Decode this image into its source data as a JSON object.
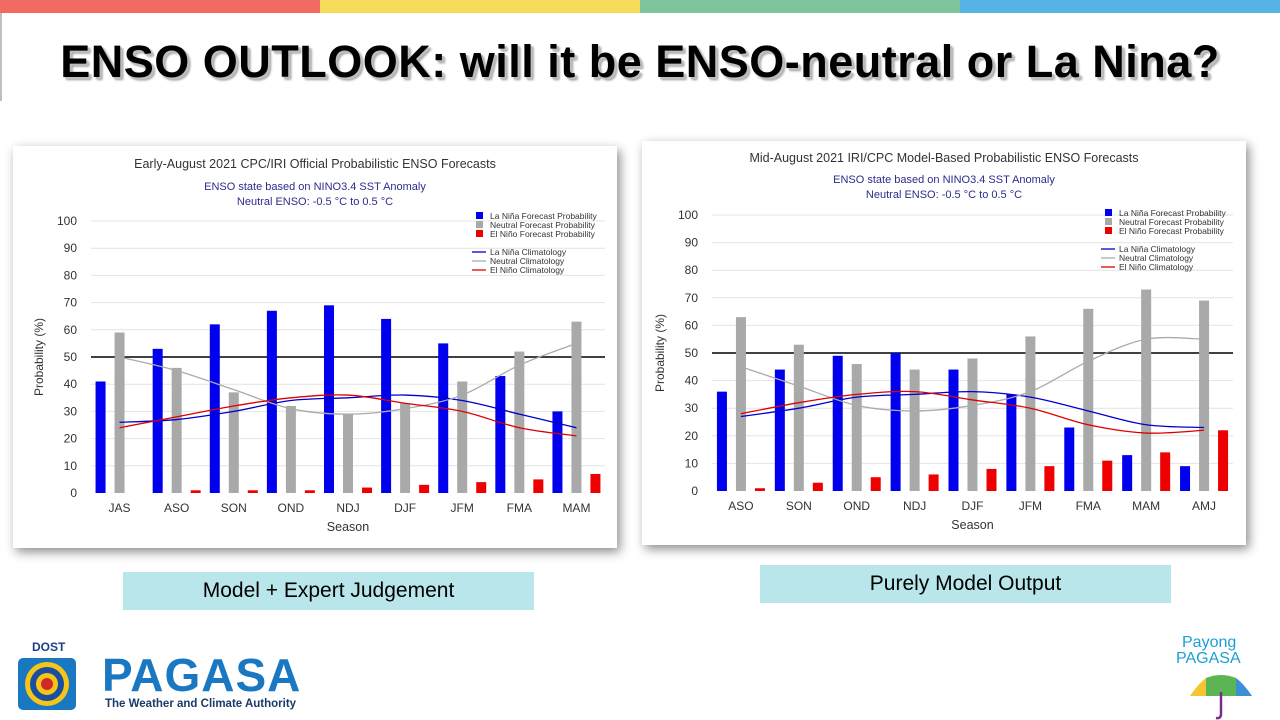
{
  "page": {
    "title": "ENSO OUTLOOK: will it be ENSO-neutral or  La Nina?",
    "topbar_colors": [
      "#f26b63",
      "#f5dc5a",
      "#7cc49a",
      "#55b4e4"
    ],
    "captions": {
      "left": "Model + Expert Judgement",
      "right": "Purely Model Output"
    },
    "logos": {
      "dost": "DOST",
      "pagasa": "PAGASA",
      "pagasa_tagline": "The Weather and Climate Authority",
      "payong_line1": "Payong",
      "payong_line2": "PAGASA"
    }
  },
  "chart_data": [
    {
      "type": "bar",
      "title": "Early-August 2021 CPC/IRI Official Probabilistic ENSO Forecasts",
      "subtitle": [
        "ENSO state based on NINO3.4 SST Anomaly",
        "Neutral ENSO: -0.5 °C to 0.5 °C"
      ],
      "xlabel": "Season",
      "ylabel": "Probability (%)",
      "ylim": [
        0,
        100
      ],
      "yticks": [
        0,
        10,
        20,
        30,
        40,
        50,
        60,
        70,
        80,
        90,
        100
      ],
      "reference_line": 50,
      "grid": true,
      "legend_position": "top-right",
      "categories": [
        "JAS",
        "ASO",
        "SON",
        "OND",
        "NDJ",
        "DJF",
        "JFM",
        "FMA",
        "MAM"
      ],
      "series": [
        {
          "name": "La Niña Forecast Probability",
          "kind": "bar",
          "color": "#0000ee",
          "values": [
            41,
            53,
            62,
            67,
            69,
            64,
            55,
            43,
            30
          ]
        },
        {
          "name": "Neutral Forecast Probability",
          "kind": "bar",
          "color": "#a9a9a9",
          "values": [
            59,
            46,
            37,
            32,
            29,
            33,
            41,
            52,
            63
          ]
        },
        {
          "name": "El Niño Forecast Probability",
          "kind": "bar",
          "color": "#ee0000",
          "values": [
            0,
            1,
            1,
            1,
            2,
            3,
            4,
            5,
            7
          ]
        },
        {
          "name": "La Niña Climatology",
          "kind": "line",
          "color": "#0000cc",
          "values": [
            26,
            27,
            30,
            34,
            35,
            36,
            34,
            29,
            24
          ]
        },
        {
          "name": "Neutral Climatology",
          "kind": "line",
          "color": "#aaaaaa",
          "values": [
            50,
            45,
            38,
            31,
            29,
            31,
            36,
            47,
            55
          ]
        },
        {
          "name": "El Niño Climatology",
          "kind": "line",
          "color": "#dd0000",
          "values": [
            24,
            28,
            32,
            35,
            36,
            33,
            30,
            24,
            21
          ]
        }
      ]
    },
    {
      "type": "bar",
      "title": "Mid-August 2021 IRI/CPC Model-Based Probabilistic ENSO Forecasts",
      "subtitle": [
        "ENSO state based on NINO3.4 SST Anomaly",
        "Neutral ENSO: -0.5 °C to 0.5 °C"
      ],
      "xlabel": "Season",
      "ylabel": "Probability (%)",
      "ylim": [
        0,
        100
      ],
      "yticks": [
        0,
        10,
        20,
        30,
        40,
        50,
        60,
        70,
        80,
        90,
        100
      ],
      "reference_line": 50,
      "grid": true,
      "legend_position": "top-right",
      "categories": [
        "ASO",
        "SON",
        "OND",
        "NDJ",
        "DJF",
        "JFM",
        "FMA",
        "MAM",
        "AMJ"
      ],
      "series": [
        {
          "name": "La Niña Forecast Probability",
          "kind": "bar",
          "color": "#0000ee",
          "values": [
            36,
            44,
            49,
            50,
            44,
            35,
            23,
            13,
            9
          ]
        },
        {
          "name": "Neutral Forecast Probability",
          "kind": "bar",
          "color": "#a9a9a9",
          "values": [
            63,
            53,
            46,
            44,
            48,
            56,
            66,
            73,
            69
          ]
        },
        {
          "name": "El Niño Forecast Probability",
          "kind": "bar",
          "color": "#ee0000",
          "values": [
            1,
            3,
            5,
            6,
            8,
            9,
            11,
            14,
            22
          ]
        },
        {
          "name": "La Niña Climatology",
          "kind": "line",
          "color": "#0000cc",
          "values": [
            27,
            30,
            34,
            35,
            36,
            34,
            29,
            24,
            23
          ]
        },
        {
          "name": "Neutral Climatology",
          "kind": "line",
          "color": "#aaaaaa",
          "values": [
            45,
            38,
            31,
            29,
            31,
            36,
            47,
            55,
            55
          ]
        },
        {
          "name": "El Niño Climatology",
          "kind": "line",
          "color": "#dd0000",
          "values": [
            28,
            32,
            35,
            36,
            33,
            30,
            24,
            21,
            22
          ]
        }
      ]
    }
  ]
}
